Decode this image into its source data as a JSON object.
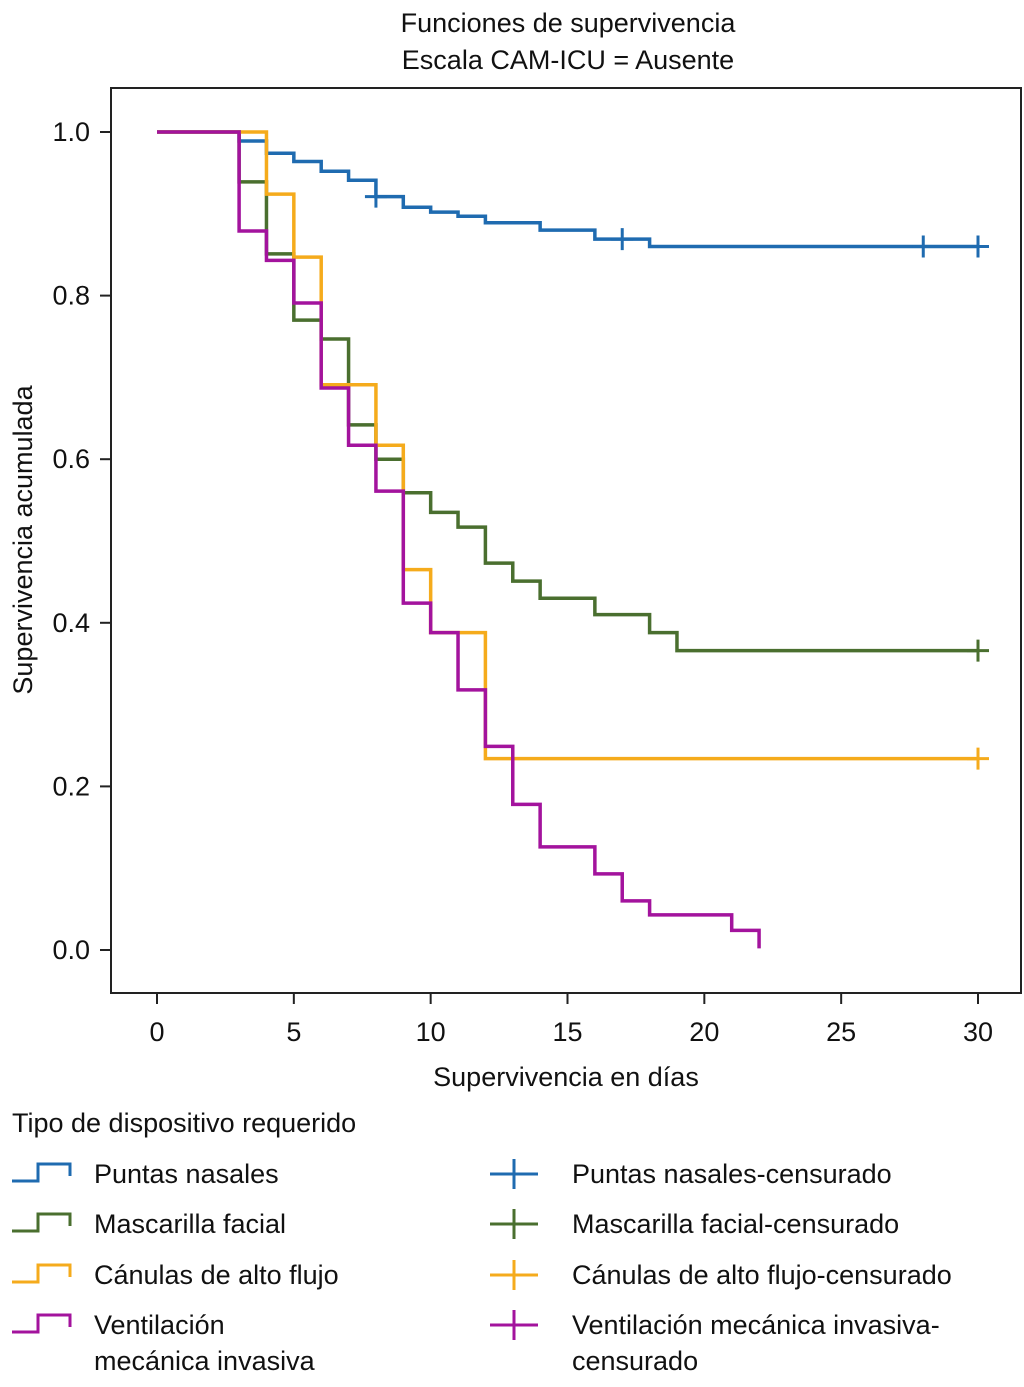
{
  "chart_data": {
    "type": "line",
    "subtype": "kaplan-meier-step",
    "title": "Funciones de supervivencia",
    "subtitle": "Escala CAM-ICU = Ausente",
    "xlabel": "Supervivencia en días",
    "ylabel": "Supervivencia acumulada",
    "xlim": [
      0,
      30
    ],
    "ylim": [
      0.0,
      1.0
    ],
    "xticks": [
      0,
      5,
      10,
      15,
      20,
      25,
      30
    ],
    "xtick_labels": [
      "0",
      "5",
      "10",
      "15",
      "20",
      "25",
      "30"
    ],
    "yticks": [
      0.0,
      0.2,
      0.4,
      0.6,
      0.8,
      1.0
    ],
    "ytick_labels": [
      "0.0",
      "0.2",
      "0.4",
      "0.6",
      "0.8",
      "1.0"
    ],
    "grid": false,
    "legend_title": "Tipo de dispositivo requerido",
    "legend_position": "bottom",
    "series": [
      {
        "name": "Puntas nasales",
        "censor_name": "Puntas nasales-censurado",
        "color": "#1f6bb0",
        "steps": [
          [
            0,
            1.0
          ],
          [
            3,
            0.989
          ],
          [
            4,
            0.974
          ],
          [
            5,
            0.964
          ],
          [
            6,
            0.952
          ],
          [
            7,
            0.941
          ],
          [
            8,
            0.921
          ],
          [
            9,
            0.908
          ],
          [
            10,
            0.902
          ],
          [
            11,
            0.897
          ],
          [
            12,
            0.889
          ],
          [
            14,
            0.88
          ],
          [
            16,
            0.869
          ],
          [
            18,
            0.86
          ]
        ],
        "end": 30,
        "censored": [
          [
            8,
            0.921
          ],
          [
            17,
            0.869
          ],
          [
            28,
            0.86
          ],
          [
            30,
            0.86
          ]
        ]
      },
      {
        "name": "Mascarilla facial",
        "censor_name": "Mascarilla facial-censurado",
        "color": "#4a6f2f",
        "steps": [
          [
            0,
            1.0
          ],
          [
            3,
            0.939
          ],
          [
            4,
            0.851
          ],
          [
            5,
            0.77
          ],
          [
            6,
            0.747
          ],
          [
            7,
            0.642
          ],
          [
            8,
            0.6
          ],
          [
            9,
            0.559
          ],
          [
            10,
            0.535
          ],
          [
            11,
            0.517
          ],
          [
            12,
            0.473
          ],
          [
            13,
            0.451
          ],
          [
            14,
            0.43
          ],
          [
            16,
            0.41
          ],
          [
            18,
            0.388
          ],
          [
            19,
            0.366
          ]
        ],
        "end": 30,
        "censored": [
          [
            30,
            0.366
          ]
        ]
      },
      {
        "name": "Cánulas de alto flujo",
        "censor_name": "Cánulas de alto flujo-censurado",
        "color": "#f5ab1c",
        "steps": [
          [
            0,
            1.0
          ],
          [
            4,
            0.924
          ],
          [
            5,
            0.847
          ],
          [
            6,
            0.691
          ],
          [
            8,
            0.617
          ],
          [
            9,
            0.465
          ],
          [
            10,
            0.388
          ],
          [
            12,
            0.234
          ]
        ],
        "end": 30,
        "censored": [
          [
            30,
            0.234
          ]
        ]
      },
      {
        "name": "Ventilación mecánica invasiva",
        "censor_name": "Ventilación mecánica invasiva-censurado",
        "color": "#a3139d",
        "steps": [
          [
            0,
            1.0
          ],
          [
            3,
            0.879
          ],
          [
            4,
            0.843
          ],
          [
            5,
            0.791
          ],
          [
            6,
            0.687
          ],
          [
            7,
            0.617
          ],
          [
            8,
            0.561
          ],
          [
            9,
            0.424
          ],
          [
            10,
            0.388
          ],
          [
            11,
            0.318
          ],
          [
            12,
            0.249
          ],
          [
            13,
            0.178
          ],
          [
            14,
            0.126
          ],
          [
            16,
            0.093
          ],
          [
            17,
            0.06
          ],
          [
            18,
            0.043
          ],
          [
            21,
            0.024
          ],
          [
            22,
            0.002
          ]
        ],
        "end": 22,
        "censored": []
      }
    ]
  },
  "legend": {
    "title": "Tipo de dispositivo requerido",
    "items": [
      {
        "label": "Puntas nasales",
        "color": "#1f6bb0",
        "kind": "step"
      },
      {
        "label": "Puntas nasales-censurado",
        "color": "#1f6bb0",
        "kind": "censor"
      },
      {
        "label": "Mascarilla facial",
        "color": "#4a6f2f",
        "kind": "step"
      },
      {
        "label": "Mascarilla facial-censurado",
        "color": "#4a6f2f",
        "kind": "censor"
      },
      {
        "label": "Cánulas de alto flujo",
        "color": "#f5ab1c",
        "kind": "step"
      },
      {
        "label": "Cánulas de alto flujo-censurado",
        "color": "#f5ab1c",
        "kind": "censor"
      },
      {
        "label": "Ventilación mecánica invasiva",
        "color": "#a3139d",
        "kind": "step"
      },
      {
        "label": "Ventilación mecánica invasiva-censurado",
        "color": "#a3139d",
        "kind": "censor"
      }
    ]
  }
}
